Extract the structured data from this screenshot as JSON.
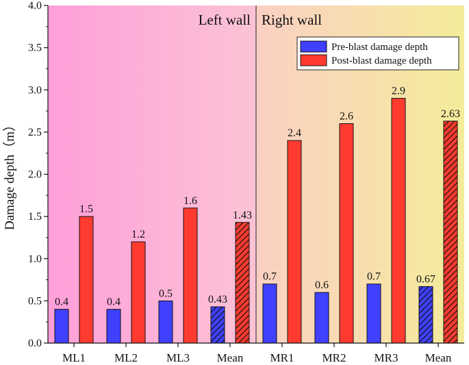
{
  "chart_data": {
    "type": "bar",
    "ylabel": "Damage depth（m）",
    "ylim": [
      0,
      4.0
    ],
    "yticks": [
      "0.0",
      "0.5",
      "1.0",
      "1.5",
      "2.0",
      "2.5",
      "3.0",
      "3.5",
      "4.0"
    ],
    "categories": [
      "ML1",
      "ML2",
      "ML3",
      "Mean",
      "MR1",
      "MR2",
      "MR3",
      "Mean"
    ],
    "series": [
      {
        "name": "Pre-blast damage depth",
        "color": "#4040ff",
        "values": [
          0.4,
          0.4,
          0.5,
          0.43,
          0.7,
          0.6,
          0.7,
          0.67
        ],
        "labels": [
          "0.4",
          "0.4",
          "0.5",
          "0.43",
          "0.7",
          "0.6",
          "0.7",
          "0.67"
        ]
      },
      {
        "name": "Post-blast damage depth",
        "color": "#ff3b30",
        "values": [
          1.5,
          1.2,
          1.6,
          1.43,
          2.4,
          2.6,
          2.9,
          2.63
        ],
        "labels": [
          "1.5",
          "1.2",
          "1.6",
          "1.43",
          "2.4",
          "2.6",
          "2.9",
          "2.63"
        ]
      }
    ],
    "hatched_categories": [
      3,
      7
    ],
    "regions": [
      {
        "label": "Left wall",
        "categories": [
          0,
          1,
          2,
          3
        ]
      },
      {
        "label": "Right wall",
        "categories": [
          4,
          5,
          6,
          7
        ]
      }
    ],
    "legend_position": "top-right"
  }
}
